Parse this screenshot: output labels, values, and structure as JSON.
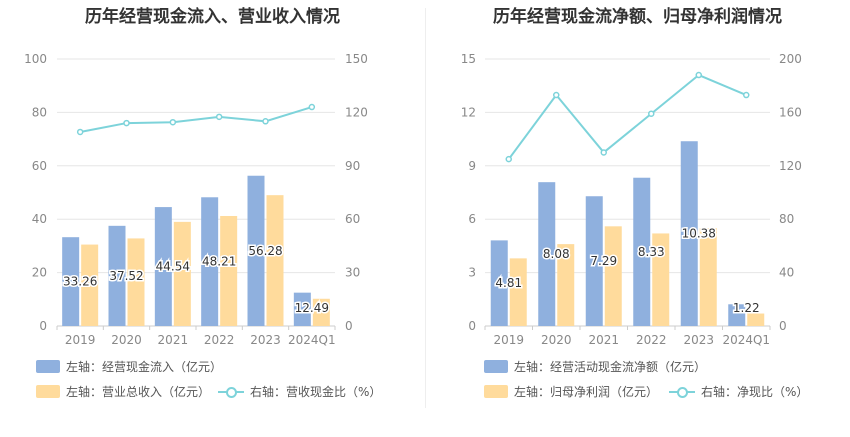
{
  "chart_data": [
    {
      "type": "bar",
      "title": "历年经营现金流入、营业收入情况",
      "categories": [
        "2019",
        "2020",
        "2021",
        "2022",
        "2023",
        "2024Q1"
      ],
      "left_axis": {
        "ylim": [
          0,
          100
        ],
        "ticks": [
          0,
          20,
          40,
          60,
          80,
          100
        ]
      },
      "right_axis": {
        "ylim": [
          0,
          150
        ],
        "ticks": [
          0,
          30,
          60,
          90,
          120,
          150
        ]
      },
      "series": [
        {
          "name": "左轴：经营现金流入（亿元）",
          "kind": "bar",
          "axis": "left",
          "color": "#8fb0de",
          "values": [
            33.26,
            37.52,
            44.54,
            48.21,
            56.28,
            12.49
          ],
          "labels": [
            "33.26",
            "37.52",
            "44.54",
            "48.21",
            "56.28",
            "12.49"
          ]
        },
        {
          "name": "左轴：营业总收入（亿元）",
          "kind": "bar",
          "axis": "left",
          "color": "#ffdb9c",
          "values": [
            30.5,
            32.8,
            39.0,
            41.2,
            49.0,
            10.2
          ]
        },
        {
          "name": "右轴：营收现金比（%）",
          "kind": "line",
          "axis": "right",
          "color": "#7dd3da",
          "values": [
            109,
            114,
            114.5,
            117.5,
            115,
            123
          ]
        }
      ]
    },
    {
      "type": "bar",
      "title": "历年经营现金流净额、归母净利润情况",
      "categories": [
        "2019",
        "2020",
        "2021",
        "2022",
        "2023",
        "2024Q1"
      ],
      "left_axis": {
        "ylim": [
          0,
          15
        ],
        "ticks": [
          0,
          3,
          6,
          9,
          12,
          15
        ]
      },
      "right_axis": {
        "ylim": [
          0,
          200
        ],
        "ticks": [
          0,
          40,
          80,
          120,
          160,
          200
        ]
      },
      "series": [
        {
          "name": "左轴：经营活动现金流净额（亿元）",
          "kind": "bar",
          "axis": "left",
          "color": "#8fb0de",
          "values": [
            4.81,
            8.08,
            7.29,
            8.33,
            10.38,
            1.22
          ],
          "labels": [
            "4.81",
            "8.08",
            "7.29",
            "8.33",
            "10.38",
            "1.22"
          ]
        },
        {
          "name": "左轴：归母净利润（亿元）",
          "kind": "bar",
          "axis": "left",
          "color": "#ffdb9c",
          "values": [
            3.8,
            4.6,
            5.6,
            5.2,
            5.5,
            0.7
          ]
        },
        {
          "name": "右轴：净现比（%）",
          "kind": "line",
          "axis": "right",
          "color": "#7dd3da",
          "values": [
            125,
            173,
            130,
            159,
            188,
            173
          ]
        }
      ]
    }
  ]
}
